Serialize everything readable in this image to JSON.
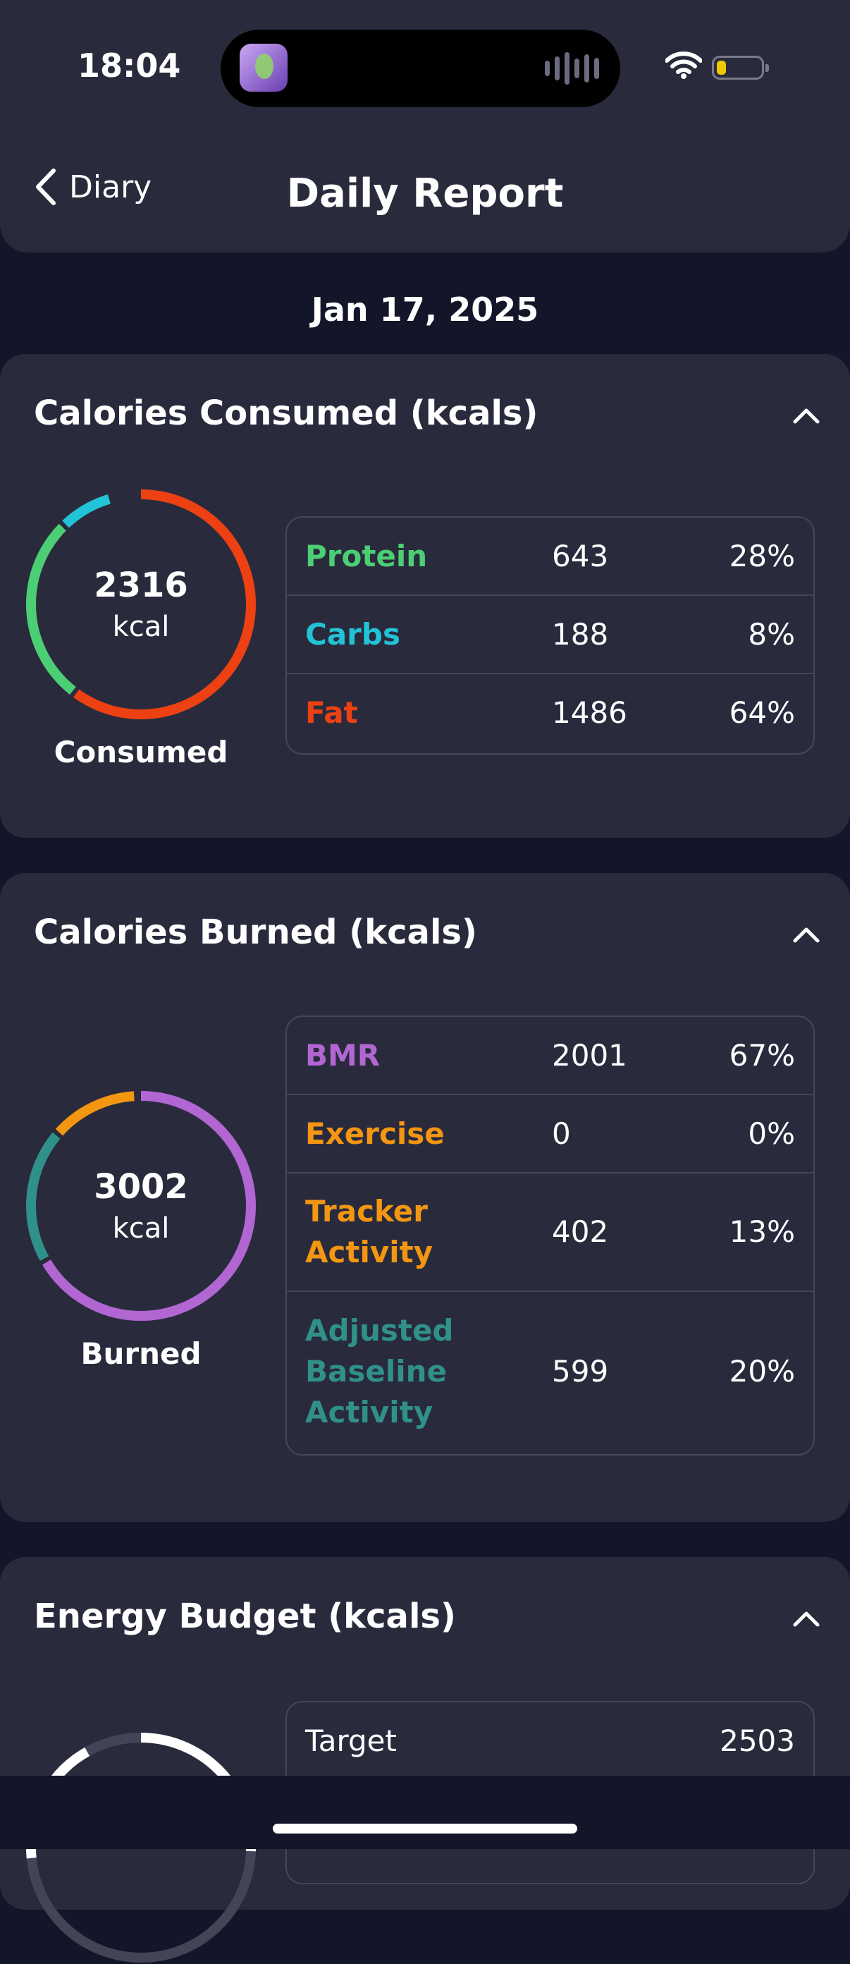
{
  "status_bar": {
    "time": "18:04"
  },
  "nav": {
    "back_label": "Diary",
    "title": "Daily Report"
  },
  "date": "Jan 17, 2025",
  "colors": {
    "protein": "#4cce74",
    "carbs": "#22c3d6",
    "fat": "#ee4113",
    "bmr": "#b266d2",
    "exercise": "#f39611",
    "tracker": "#f39611",
    "adjusted": "#30908a"
  },
  "consumed": {
    "title": "Calories Consumed (kcals)",
    "ring_value": "2316",
    "ring_unit": "kcal",
    "ring_label": "Consumed",
    "rows": [
      {
        "name": "Protein",
        "value": "643",
        "percent": "28%"
      },
      {
        "name": "Carbs",
        "value": "188",
        "percent": "8%"
      },
      {
        "name": "Fat",
        "value": "1486",
        "percent": "64%"
      }
    ]
  },
  "burned": {
    "title": "Calories Burned (kcals)",
    "ring_value": "3002",
    "ring_unit": "kcal",
    "ring_label": "Burned",
    "rows": [
      {
        "name": "BMR",
        "value": "2001",
        "percent": "67%"
      },
      {
        "name": "Exercise",
        "value": "0",
        "percent": "0%"
      },
      {
        "name": "Tracker Activity",
        "value": "402",
        "percent": "13%"
      },
      {
        "name": "Adjusted Baseline Activity",
        "value": "599",
        "percent": "20%"
      }
    ]
  },
  "budget": {
    "title": "Energy Budget (kcals)",
    "rows": [
      {
        "name": "Target",
        "value": "2503"
      }
    ]
  },
  "icons": [
    "chevron-left-icon",
    "chevron-up-icon",
    "wifi-icon",
    "battery-icon",
    "app-icon",
    "audio-bars-icon"
  ]
}
